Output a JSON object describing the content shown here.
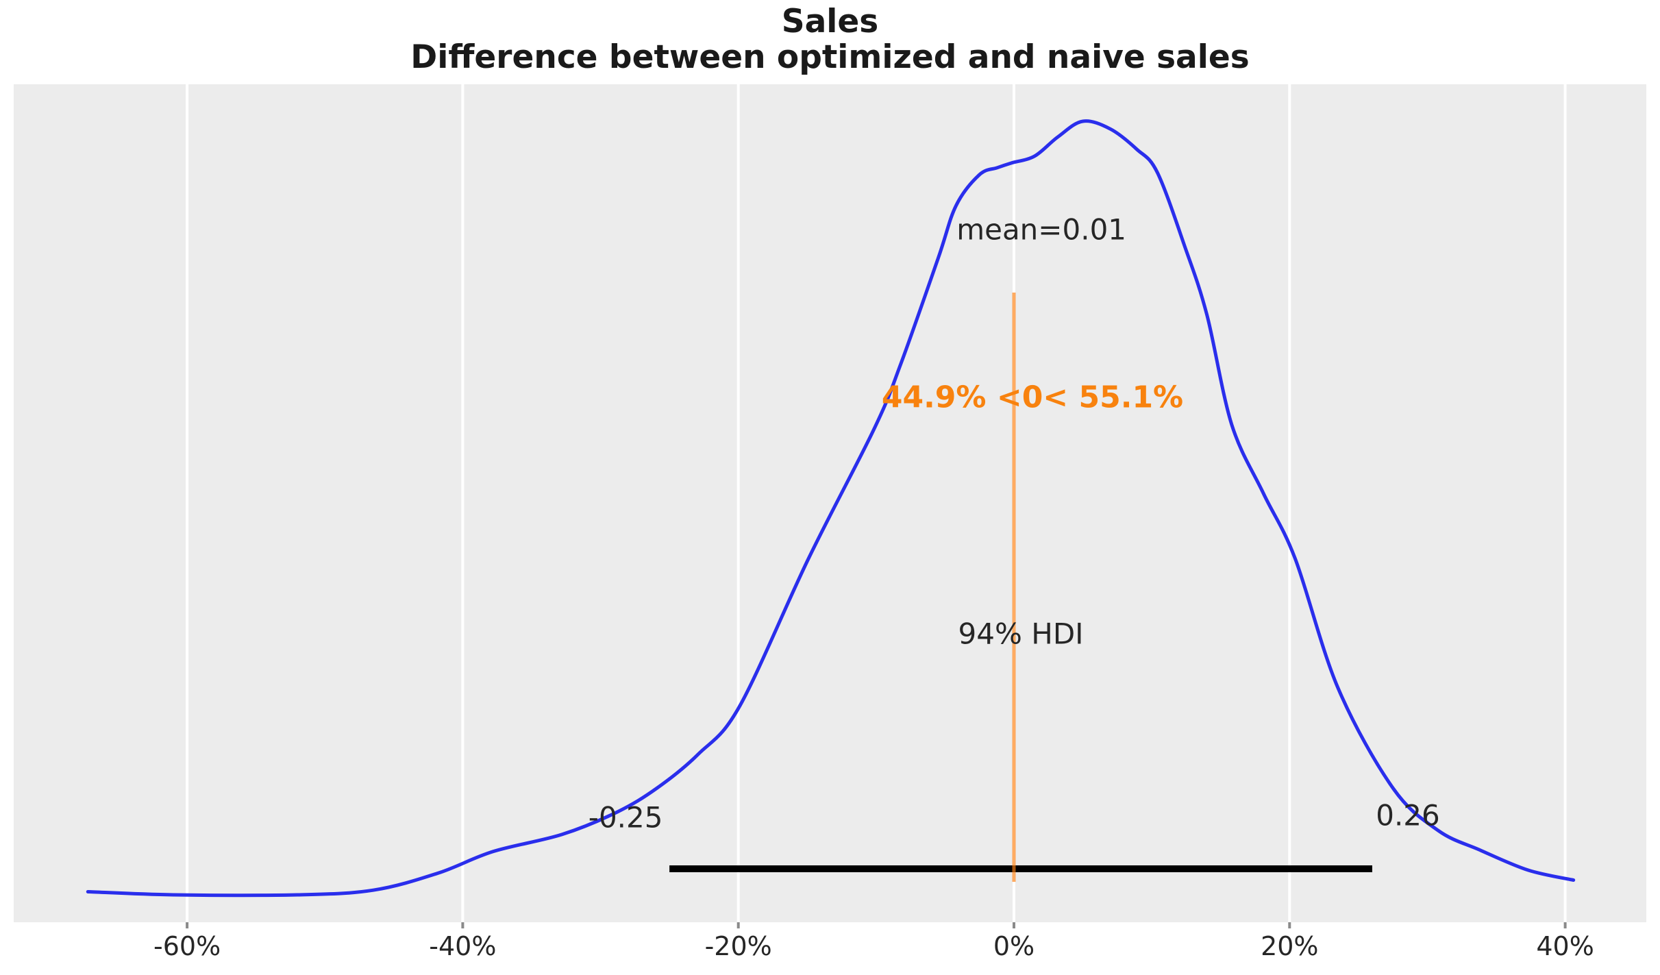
{
  "chart_data": {
    "type": "kde",
    "title": "Sales",
    "subtitle": "Difference between optimized and naive sales",
    "x_axis": {
      "unit": "percent",
      "ticks": [
        {
          "value": -60,
          "label": "-60%"
        },
        {
          "value": -40,
          "label": "-40%"
        },
        {
          "value": -20,
          "label": "-20%"
        },
        {
          "value": 0,
          "label": "0%"
        },
        {
          "value": 20,
          "label": "20%"
        },
        {
          "value": 40,
          "label": "40%"
        }
      ],
      "grid": true
    },
    "mean": {
      "value": 0.01,
      "label": "mean=0.01"
    },
    "hdi": {
      "prob": "94%",
      "label": "94% HDI",
      "low": -0.25,
      "high": 0.26,
      "low_label": "-0.25",
      "high_label": "0.26"
    },
    "ref_val": {
      "value": 0,
      "pct_below": "44.9%",
      "pct_above": "55.1%",
      "label": "44.9% <0< 55.1%"
    },
    "curve": {
      "name": "posterior density of sales difference",
      "x_unit": "percent",
      "y_unit": "normalized density (peak = 1)",
      "points": [
        [
          -67.2,
          0.004
        ],
        [
          -61.0,
          0.0
        ],
        [
          -52.0,
          0.0
        ],
        [
          -46.5,
          0.006
        ],
        [
          -41.8,
          0.028
        ],
        [
          -37.8,
          0.056
        ],
        [
          -32.8,
          0.078
        ],
        [
          -28.8,
          0.107
        ],
        [
          -25.9,
          0.138
        ],
        [
          -22.9,
          0.182
        ],
        [
          -19.9,
          0.244
        ],
        [
          -14.9,
          0.435
        ],
        [
          -10.1,
          0.604
        ],
        [
          -8.2,
          0.687
        ],
        [
          -5.5,
          0.823
        ],
        [
          -4.2,
          0.891
        ],
        [
          -2.5,
          0.931
        ],
        [
          -1.2,
          0.94
        ],
        [
          -0.2,
          0.946
        ],
        [
          1.5,
          0.955
        ],
        [
          3.2,
          0.98
        ],
        [
          5.0,
          1.0
        ],
        [
          7.0,
          0.99
        ],
        [
          8.9,
          0.964
        ],
        [
          10.4,
          0.934
        ],
        [
          12.4,
          0.838
        ],
        [
          14.0,
          0.75
        ],
        [
          15.8,
          0.608
        ],
        [
          18.1,
          0.519
        ],
        [
          20.4,
          0.435
        ],
        [
          23.5,
          0.268
        ],
        [
          27.5,
          0.138
        ],
        [
          30.8,
          0.083
        ],
        [
          33.8,
          0.058
        ],
        [
          37.3,
          0.032
        ],
        [
          40.6,
          0.019
        ]
      ]
    },
    "colors": {
      "curve": "#2a2eec",
      "ref_line": "#ff7f0e",
      "ref_text": "#f8820e",
      "hdi_line": "#000000",
      "plot_bg": "#ececec",
      "grid": "#ffffff",
      "tick_mark": "#8a8a8a",
      "text": "#262626"
    },
    "legend": null
  }
}
